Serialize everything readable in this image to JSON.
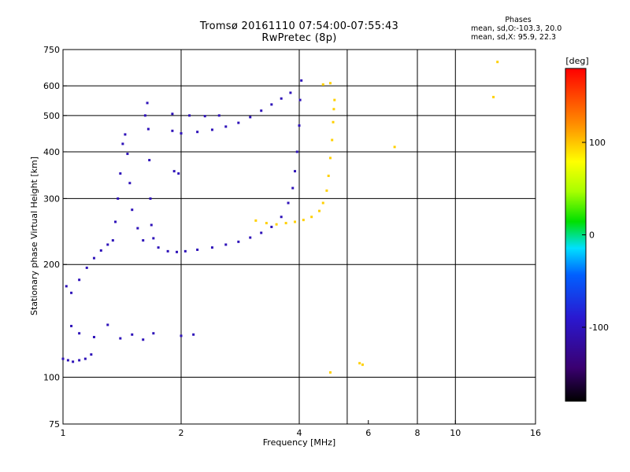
{
  "chart_data": {
    "type": "scatter",
    "title": "Tromsø 20161110 07:54:00-07:55:43",
    "subtitle": "RwPretec (8p)",
    "xlabel": "Frequency [MHz]",
    "ylabel": "Stationary phase Virtual Height [km]",
    "x_scale": "log",
    "y_scale": "log",
    "xlim": [
      1,
      16
    ],
    "ylim": [
      75,
      750
    ],
    "x_ticks": [
      1,
      2,
      4,
      6,
      8,
      10,
      16
    ],
    "x_gridlines": [
      2,
      4,
      5.3,
      8,
      10
    ],
    "y_ticks": [
      75,
      100,
      200,
      300,
      400,
      500,
      600,
      750
    ],
    "y_gridlines": [
      100,
      200,
      300,
      400,
      500,
      600
    ],
    "phases_box": {
      "title": "Phases",
      "line1": "mean, sd,O:-103.3, 20.0",
      "line2": "mean, sd,X:  95.9, 22.3"
    },
    "colorbar": {
      "label": "[deg]",
      "range": [
        -180,
        180
      ],
      "ticks": [
        100,
        0,
        -100
      ]
    },
    "series": [
      {
        "name": "O",
        "phase": -103,
        "points": [
          [
            1.0,
            112
          ],
          [
            1.03,
            111
          ],
          [
            1.06,
            110
          ],
          [
            1.1,
            111
          ],
          [
            1.14,
            112
          ],
          [
            1.18,
            115
          ],
          [
            1.02,
            175
          ],
          [
            1.05,
            168
          ],
          [
            1.1,
            182
          ],
          [
            1.15,
            196
          ],
          [
            1.2,
            208
          ],
          [
            1.25,
            218
          ],
          [
            1.3,
            226
          ],
          [
            1.34,
            232
          ],
          [
            1.36,
            260
          ],
          [
            1.38,
            300
          ],
          [
            1.4,
            350
          ],
          [
            1.42,
            420
          ],
          [
            1.44,
            445
          ],
          [
            1.46,
            395
          ],
          [
            1.48,
            330
          ],
          [
            1.5,
            280
          ],
          [
            1.55,
            250
          ],
          [
            1.6,
            232
          ],
          [
            1.62,
            500
          ],
          [
            1.64,
            540
          ],
          [
            1.65,
            460
          ],
          [
            1.66,
            380
          ],
          [
            1.67,
            300
          ],
          [
            1.68,
            255
          ],
          [
            1.7,
            235
          ],
          [
            1.75,
            222
          ],
          [
            1.85,
            217
          ],
          [
            1.95,
            216
          ],
          [
            2.05,
            217
          ],
          [
            2.2,
            219
          ],
          [
            2.4,
            222
          ],
          [
            2.6,
            226
          ],
          [
            2.8,
            230
          ],
          [
            3.0,
            236
          ],
          [
            3.2,
            243
          ],
          [
            3.4,
            252
          ],
          [
            3.6,
            268
          ],
          [
            3.75,
            292
          ],
          [
            3.85,
            320
          ],
          [
            3.9,
            355
          ],
          [
            3.95,
            400
          ],
          [
            4.0,
            470
          ],
          [
            4.02,
            550
          ],
          [
            4.05,
            620
          ],
          [
            1.9,
            455
          ],
          [
            2.0,
            448
          ],
          [
            2.2,
            452
          ],
          [
            2.4,
            458
          ],
          [
            2.6,
            467
          ],
          [
            2.8,
            478
          ],
          [
            3.0,
            495
          ],
          [
            3.2,
            515
          ],
          [
            3.4,
            535
          ],
          [
            3.6,
            555
          ],
          [
            3.8,
            575
          ],
          [
            1.9,
            505
          ],
          [
            2.1,
            500
          ],
          [
            2.3,
            498
          ],
          [
            2.5,
            500
          ],
          [
            1.05,
            137
          ],
          [
            1.1,
            131
          ],
          [
            1.2,
            128
          ],
          [
            1.3,
            138
          ],
          [
            1.4,
            127
          ],
          [
            1.5,
            130
          ],
          [
            1.6,
            126
          ],
          [
            1.7,
            131
          ],
          [
            2.0,
            129
          ],
          [
            2.15,
            130
          ],
          [
            1.92,
            355
          ],
          [
            1.97,
            350
          ]
        ]
      },
      {
        "name": "X",
        "phase": 96,
        "points": [
          [
            3.1,
            262
          ],
          [
            3.3,
            258
          ],
          [
            3.5,
            256
          ],
          [
            3.7,
            258
          ],
          [
            3.9,
            260
          ],
          [
            4.1,
            263
          ],
          [
            4.3,
            268
          ],
          [
            4.5,
            278
          ],
          [
            4.6,
            292
          ],
          [
            4.7,
            315
          ],
          [
            4.75,
            345
          ],
          [
            4.8,
            385
          ],
          [
            4.85,
            430
          ],
          [
            4.88,
            480
          ],
          [
            4.9,
            520
          ],
          [
            4.92,
            550
          ],
          [
            4.6,
            605
          ],
          [
            4.8,
            610
          ],
          [
            5.8,
            108
          ],
          [
            7.0,
            412
          ],
          [
            12.8,
            695
          ],
          [
            12.5,
            560
          ],
          [
            4.8,
            103
          ],
          [
            5.7,
            109
          ]
        ]
      }
    ]
  }
}
